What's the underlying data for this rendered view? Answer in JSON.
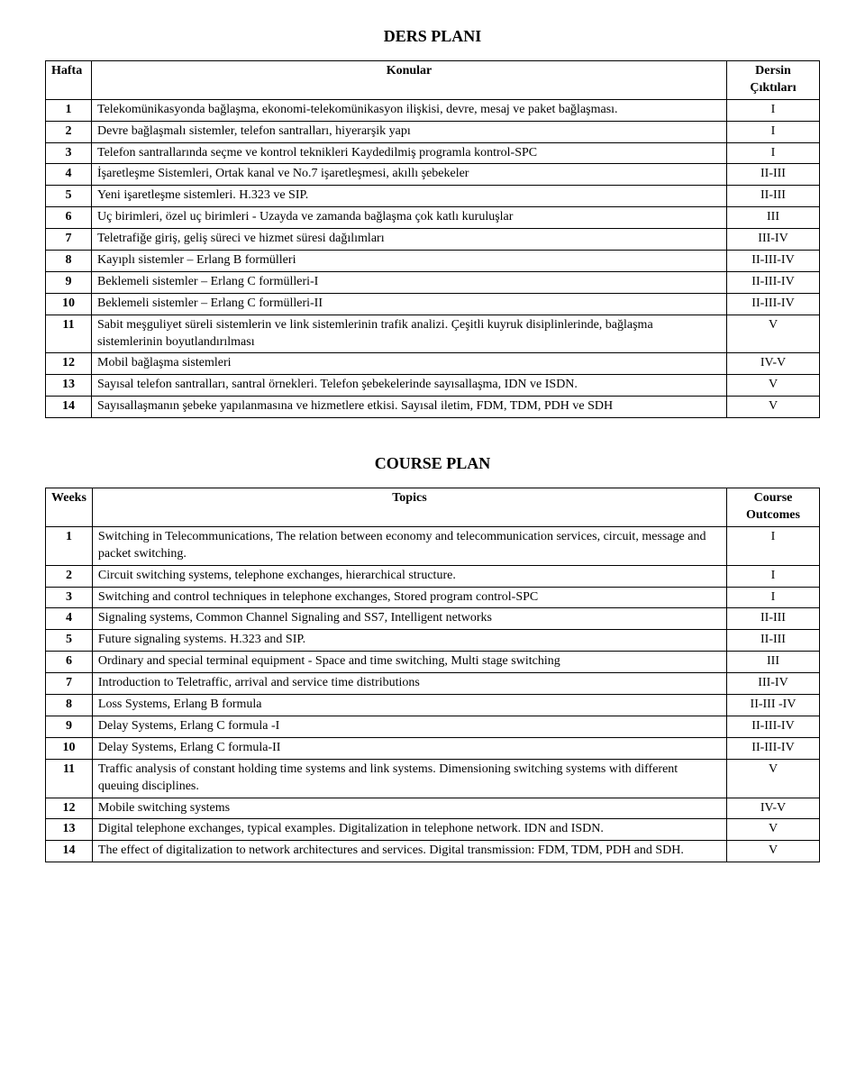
{
  "ders_plani": {
    "title": "DERS PLANI",
    "header": {
      "col1": "Hafta",
      "col2": "Konular",
      "col3": "Dersin Çıktıları"
    },
    "rows": [
      {
        "n": "1",
        "topic": "Telekomünikasyonda bağlaşma, ekonomi-telekomünikasyon ilişkisi, devre, mesaj ve paket bağlaşması.",
        "out": "I"
      },
      {
        "n": "2",
        "topic": "Devre bağlaşmalı sistemler, telefon santralları, hiyerarşik yapı",
        "out": "I"
      },
      {
        "n": "3",
        "topic": "Telefon santrallarında seçme ve kontrol teknikleri Kaydedilmiş programla kontrol-SPC",
        "out": "I"
      },
      {
        "n": "4",
        "topic": "İşaretleşme Sistemleri, Ortak kanal ve No.7 işaretleşmesi, akıllı şebekeler",
        "out": "II-III"
      },
      {
        "n": "5",
        "topic": "Yeni işaretleşme sistemleri. H.323 ve SIP.",
        "out": "II-III"
      },
      {
        "n": "6",
        "topic": "Uç birimleri, özel uç birimleri - Uzayda ve zamanda bağlaşma çok katlı kuruluşlar",
        "out": "III"
      },
      {
        "n": "7",
        "topic": "Teletrafiğe giriş, geliş süreci ve hizmet süresi dağılımları",
        "out": "III-IV"
      },
      {
        "n": "8",
        "topic": "Kayıplı sistemler – Erlang B formülleri",
        "out": "II-III-IV"
      },
      {
        "n": "9",
        "topic": "Beklemeli sistemler – Erlang C formülleri-I",
        "out": "II-III-IV"
      },
      {
        "n": "10",
        "topic": "Beklemeli sistemler – Erlang C formülleri-II",
        "out": "II-III-IV"
      },
      {
        "n": "11",
        "topic": "Sabit meşguliyet süreli sistemlerin ve link sistemlerinin trafik analizi. Çeşitli kuyruk disiplinlerinde, bağlaşma sistemlerinin boyutlandırılması",
        "out": "V"
      },
      {
        "n": "12",
        "topic": "Mobil bağlaşma sistemleri",
        "out": "IV-V"
      },
      {
        "n": "13",
        "topic": "Sayısal telefon santralları, santral örnekleri. Telefon şebekelerinde sayısallaşma, IDN ve ISDN.",
        "out": "V"
      },
      {
        "n": "14",
        "topic": "Sayısallaşmanın şebeke yapılanmasına ve hizmetlere etkisi. Sayısal iletim, FDM, TDM, PDH ve SDH",
        "out": "V"
      }
    ]
  },
  "course_plan": {
    "title": "COURSE PLAN",
    "header": {
      "col1": "Weeks",
      "col2": "Topics",
      "col3": "Course Outcomes"
    },
    "rows": [
      {
        "n": "1",
        "topic": "Switching in Telecommunications, The relation between economy and telecommunication services, circuit, message and packet switching.",
        "out": "I"
      },
      {
        "n": "2",
        "topic": "Circuit switching systems, telephone exchanges, hierarchical structure.",
        "out": "I"
      },
      {
        "n": "3",
        "topic": "Switching and control techniques in telephone exchanges, Stored program control-SPC",
        "out": "I"
      },
      {
        "n": "4",
        "topic": "Signaling systems, Common Channel Signaling and SS7, Intelligent networks",
        "out": "II-III"
      },
      {
        "n": "5",
        "topic": "Future signaling systems. H.323 and SIP.",
        "out": "II-III"
      },
      {
        "n": "6",
        "topic": "Ordinary and special terminal equipment - Space and time switching, Multi stage switching",
        "out": "III"
      },
      {
        "n": "7",
        "topic": "Introduction to Teletraffic, arrival and service time distributions",
        "out": "III-IV"
      },
      {
        "n": "8",
        "topic": "Loss Systems, Erlang B formula",
        "out": "II-III -IV"
      },
      {
        "n": "9",
        "topic": "Delay Systems, Erlang C formula -I",
        "out": "II-III-IV"
      },
      {
        "n": "10",
        "topic": "Delay Systems, Erlang C formula-II",
        "out": "II-III-IV"
      },
      {
        "n": "11",
        "topic": "Traffic analysis of constant holding time systems and link systems. Dimensioning switching systems with different queuing disciplines.",
        "out": "V"
      },
      {
        "n": "12",
        "topic": "Mobile switching systems",
        "out": "IV-V"
      },
      {
        "n": "13",
        "topic": "Digital telephone exchanges, typical examples. Digitalization in telephone network. IDN and ISDN.",
        "out": "V"
      },
      {
        "n": "14",
        "topic": "The effect of digitalization to network architectures and services. Digital transmission: FDM, TDM, PDH and SDH.",
        "out": "V"
      }
    ]
  }
}
